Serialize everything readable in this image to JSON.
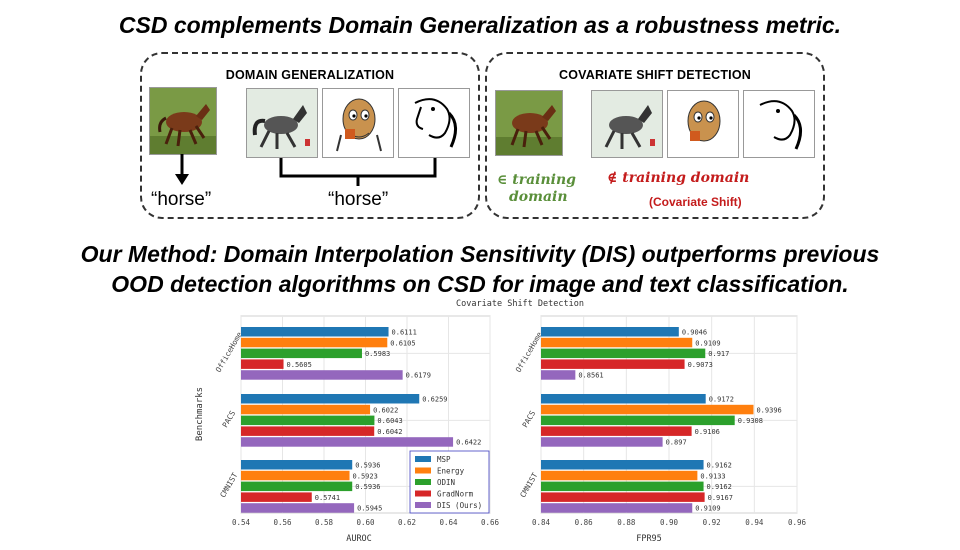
{
  "header": {
    "title": "CSD complements Domain Generalization as a robustness metric.",
    "method_title_line1": "Our Method: Domain Interpolation Sensitivity (DIS) outperforms previous",
    "method_title_line2": "OOD detection algorithms on CSD for image and text classification."
  },
  "panels": {
    "dg": {
      "title": "DOMAIN GENERALIZATION",
      "label_left": "“horse”",
      "label_right": "“horse”"
    },
    "csd": {
      "title": "COVARIATE SHIFT DETECTION",
      "in_line1": "∈ training",
      "in_line2": "domain",
      "out_line1": "∉ training domain",
      "out_line2": "(Covariate Shift)"
    }
  },
  "chart_data": {
    "suptitle": "Covariate Shift Detection",
    "type": "bar",
    "orientation": "horizontal",
    "ylabel": "Benchmarks",
    "categories": [
      "OfficeHome",
      "PACS",
      "CMNIST"
    ],
    "series_names": [
      "MSP",
      "Energy",
      "ODIN",
      "GradNorm",
      "DIS (Ours)"
    ],
    "colors": [
      "#1f77b4",
      "#ff7f0e",
      "#2ca02c",
      "#d62728",
      "#9467bd"
    ],
    "legend_position": "lower-right of AUROC panel",
    "grid": true,
    "panels": [
      {
        "xlabel": "AUROC",
        "xlim": [
          0.54,
          0.66
        ],
        "xticks": [
          "0.54",
          "0.56",
          "0.58",
          "0.60",
          "0.62",
          "0.64",
          "0.66"
        ],
        "values": {
          "OfficeHome": [
            0.6111,
            0.6105,
            0.5983,
            0.5605,
            0.6179
          ],
          "PACS": [
            0.6259,
            0.6022,
            0.6043,
            0.6042,
            0.6422
          ],
          "CMNIST": [
            0.5936,
            0.5923,
            0.5936,
            0.5741,
            0.5945
          ]
        }
      },
      {
        "xlabel": "FPR95",
        "xlim": [
          0.84,
          0.96
        ],
        "xticks": [
          "0.84",
          "0.86",
          "0.88",
          "0.90",
          "0.92",
          "0.94",
          "0.96"
        ],
        "values": {
          "OfficeHome": [
            0.9046,
            0.9109,
            0.917,
            0.9073,
            0.8561
          ],
          "PACS": [
            0.9172,
            0.9396,
            0.9308,
            0.9106,
            0.897
          ],
          "CMNIST": [
            0.9162,
            0.9133,
            0.9162,
            0.9167,
            0.9109
          ]
        }
      }
    ]
  }
}
